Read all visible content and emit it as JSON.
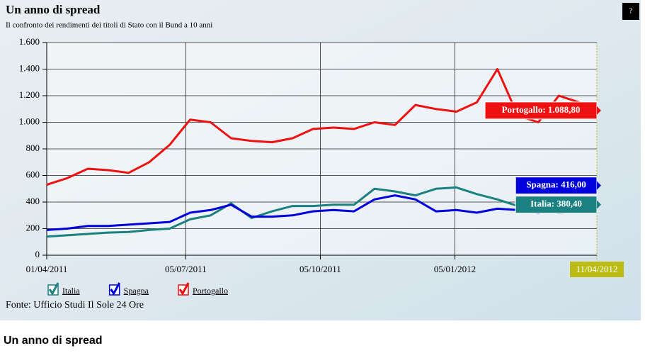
{
  "chart_data": {
    "type": "line",
    "title": "Un anno di spread",
    "subtitle": "Il confronto dei rendimenti dei titoli di Stato con il Bund a 10 anni",
    "source": "Fonte: Ufficio Studi Il Sole 24 Ore",
    "help_button": "?",
    "page_heading": "Un anno di spread",
    "x": [
      "01/04/2011",
      "15/04/2011",
      "29/04/2011",
      "13/05/2011",
      "27/05/2011",
      "10/06/2011",
      "24/06/2011",
      "08/07/2011",
      "22/07/2011",
      "05/08/2011",
      "19/08/2011",
      "02/09/2011",
      "16/09/2011",
      "30/09/2011",
      "14/10/2011",
      "28/10/2011",
      "11/11/2011",
      "25/11/2011",
      "09/12/2011",
      "23/12/2011",
      "06/01/2012",
      "20/01/2012",
      "03/02/2012",
      "17/02/2012",
      "02/03/2012",
      "16/03/2012",
      "30/03/2012",
      "11/04/2012"
    ],
    "series": [
      {
        "name": "Italia",
        "color": "#1a8080",
        "label": "Italia: 380,40",
        "values": [
          140,
          150,
          160,
          170,
          175,
          190,
          200,
          270,
          300,
          390,
          280,
          330,
          370,
          370,
          380,
          380,
          500,
          480,
          450,
          500,
          510,
          460,
          420,
          370,
          340,
          320,
          330,
          380.4
        ]
      },
      {
        "name": "Spagna",
        "color": "#0000dd",
        "label": "Spagna: 416,00",
        "values": [
          190,
          200,
          220,
          220,
          230,
          240,
          250,
          320,
          340,
          380,
          290,
          290,
          300,
          330,
          340,
          330,
          420,
          450,
          420,
          330,
          340,
          320,
          350,
          340,
          320,
          350,
          360,
          416
        ]
      },
      {
        "name": "Portogallo",
        "color": "#ee1111",
        "label": "Portogallo: 1.088,80",
        "values": [
          530,
          580,
          650,
          640,
          620,
          700,
          830,
          1020,
          1000,
          880,
          860,
          850,
          880,
          950,
          960,
          950,
          1000,
          980,
          1130,
          1100,
          1080,
          1150,
          1400,
          1050,
          1000,
          1200,
          1150,
          1088.8
        ]
      }
    ],
    "xlim": [
      "01/04/2011",
      "11/04/2012"
    ],
    "xticks": [
      "01/04/2011",
      "05/07/2011",
      "05/10/2011",
      "05/01/2012",
      "11/04/2012"
    ],
    "ylim": [
      0,
      1600
    ],
    "yticks": [
      0,
      200,
      400,
      600,
      800,
      {
        "value": 1000,
        "label": "1.000"
      },
      {
        "value": 1200,
        "label": "1.200"
      },
      {
        "value": 1400,
        "label": "1.400"
      },
      {
        "value": 1600,
        "label": "1.600"
      }
    ],
    "grid": true
  }
}
